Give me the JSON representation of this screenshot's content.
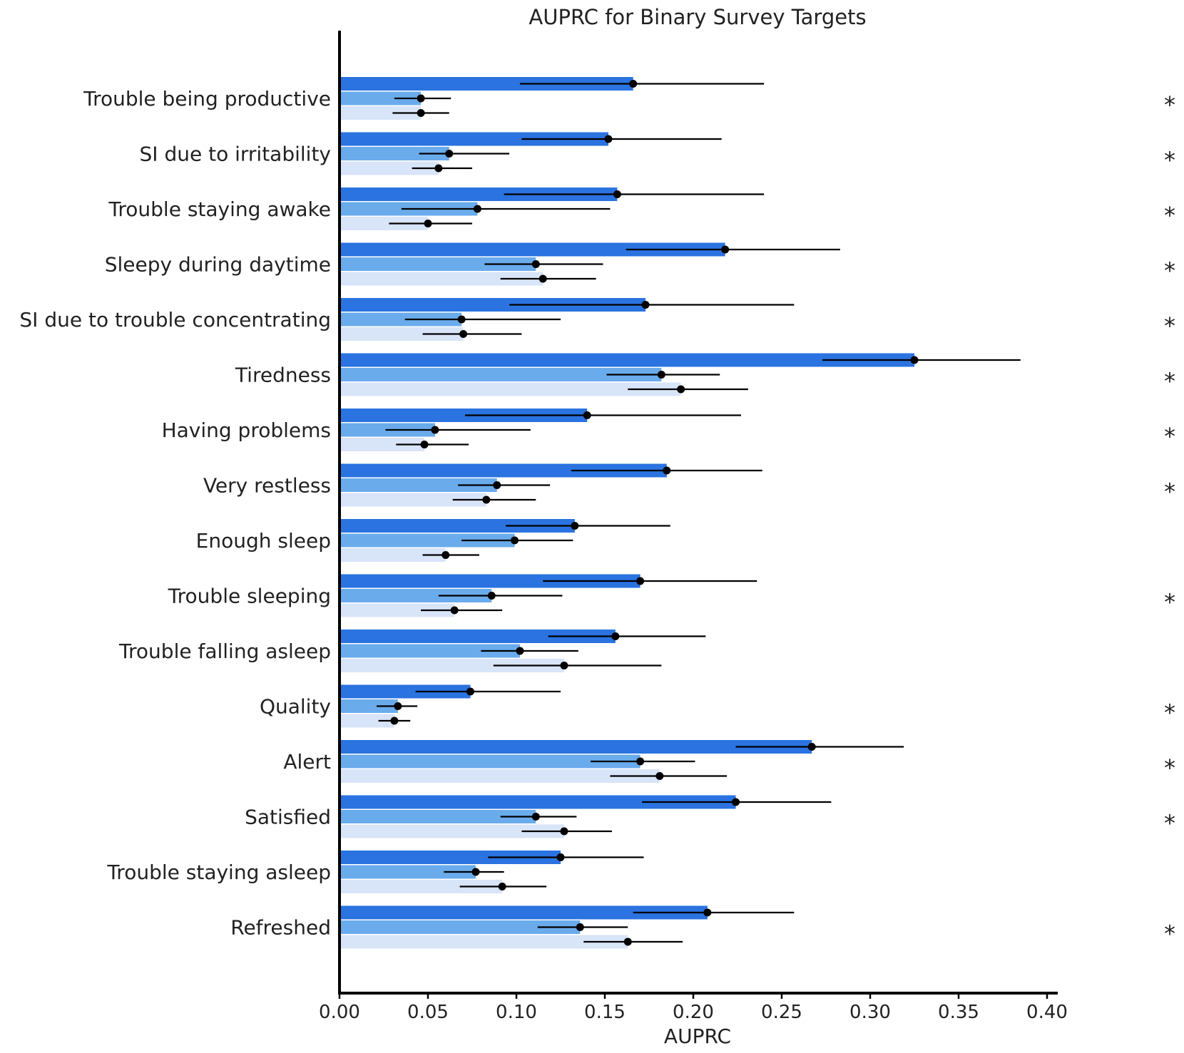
{
  "chart_data": {
    "type": "bar",
    "orientation": "horizontal",
    "title": "AUPRC for Binary Survey Targets",
    "xlabel": "AUPRC",
    "ylabel": "",
    "xlim": [
      0,
      0.4
    ],
    "xticks": [
      "0.00",
      "0.05",
      "0.10",
      "0.15",
      "0.20",
      "0.25",
      "0.30",
      "0.35",
      "0.40"
    ],
    "grid": false,
    "legend": "none",
    "colors": [
      "#2a73e0",
      "#6aabec",
      "#d8e4f8"
    ],
    "significance_marker": "*",
    "categories": [
      "Trouble being productive",
      "SI due to irritability",
      "Trouble staying awake",
      "Sleepy during daytime",
      "SI due to trouble concentrating",
      "Tiredness",
      "Having problems",
      "Very restless",
      "Enough sleep",
      "Trouble sleeping",
      "Trouble falling asleep",
      "Quality",
      "Alert",
      "Satisfied",
      "Trouble staying asleep",
      "Refreshed"
    ],
    "significant": [
      true,
      true,
      true,
      true,
      true,
      true,
      true,
      true,
      false,
      true,
      false,
      true,
      true,
      true,
      false,
      true
    ],
    "series": [
      {
        "values": [
          0.166,
          0.152,
          0.157,
          0.218,
          0.173,
          0.325,
          0.14,
          0.185,
          0.133,
          0.17,
          0.156,
          0.074,
          0.267,
          0.224,
          0.125,
          0.208
        ],
        "ci_low": [
          0.102,
          0.103,
          0.093,
          0.162,
          0.096,
          0.273,
          0.071,
          0.131,
          0.094,
          0.115,
          0.118,
          0.043,
          0.224,
          0.171,
          0.084,
          0.166
        ],
        "ci_high": [
          0.24,
          0.216,
          0.24,
          0.283,
          0.257,
          0.385,
          0.227,
          0.239,
          0.187,
          0.236,
          0.207,
          0.125,
          0.319,
          0.278,
          0.172,
          0.257
        ]
      },
      {
        "values": [
          0.046,
          0.062,
          0.078,
          0.111,
          0.069,
          0.182,
          0.054,
          0.089,
          0.099,
          0.086,
          0.102,
          0.033,
          0.17,
          0.111,
          0.077,
          0.136
        ],
        "ci_low": [
          0.031,
          0.045,
          0.035,
          0.082,
          0.037,
          0.151,
          0.026,
          0.067,
          0.069,
          0.056,
          0.08,
          0.021,
          0.142,
          0.091,
          0.059,
          0.112
        ],
        "ci_high": [
          0.063,
          0.096,
          0.153,
          0.149,
          0.125,
          0.215,
          0.108,
          0.119,
          0.132,
          0.126,
          0.135,
          0.044,
          0.201,
          0.134,
          0.093,
          0.163
        ]
      },
      {
        "values": [
          0.046,
          0.056,
          0.05,
          0.115,
          0.07,
          0.193,
          0.048,
          0.083,
          0.06,
          0.065,
          0.127,
          0.031,
          0.181,
          0.127,
          0.092,
          0.163
        ],
        "ci_low": [
          0.03,
          0.041,
          0.028,
          0.091,
          0.047,
          0.163,
          0.032,
          0.064,
          0.047,
          0.046,
          0.087,
          0.022,
          0.153,
          0.103,
          0.068,
          0.138
        ],
        "ci_high": [
          0.062,
          0.075,
          0.075,
          0.145,
          0.103,
          0.231,
          0.073,
          0.111,
          0.079,
          0.092,
          0.182,
          0.04,
          0.219,
          0.154,
          0.117,
          0.194
        ]
      }
    ]
  }
}
